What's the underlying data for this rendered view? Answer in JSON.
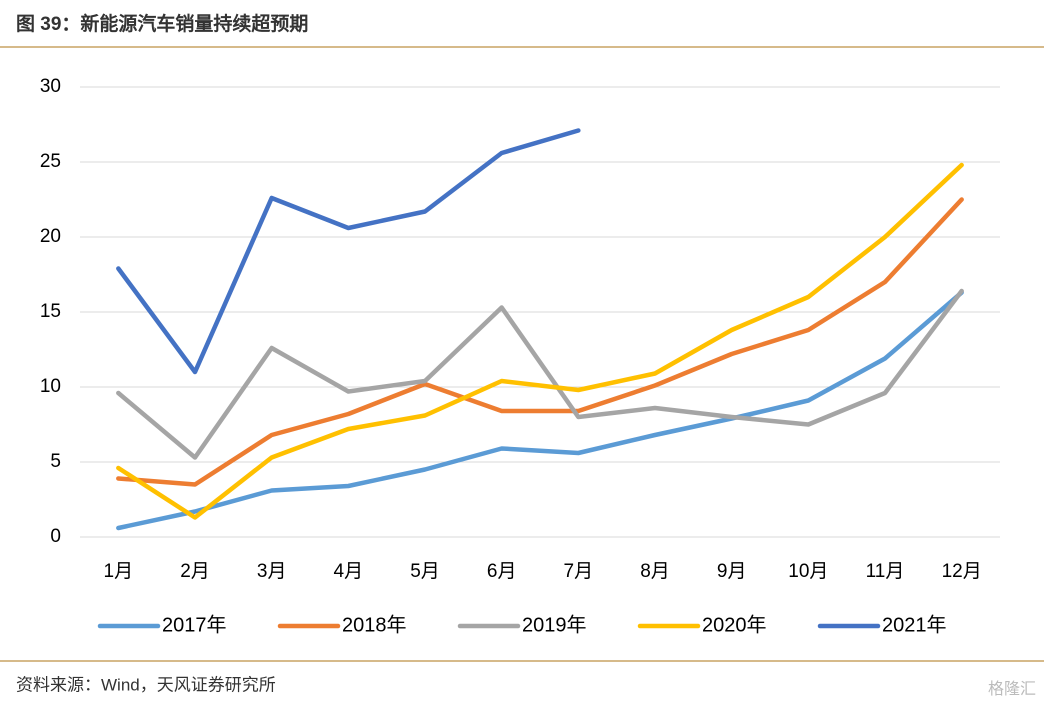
{
  "header": {
    "title": "图 39：新能源汽车销量持续超预期"
  },
  "chart_data": {
    "type": "line",
    "categories": [
      "1月",
      "2月",
      "3月",
      "4月",
      "5月",
      "6月",
      "7月",
      "8月",
      "9月",
      "10月",
      "11月",
      "12月"
    ],
    "series": [
      {
        "name": "2017年",
        "color": "#5b9bd5",
        "values": [
          0.6,
          1.7,
          3.1,
          3.4,
          4.5,
          5.9,
          5.6,
          6.8,
          7.9,
          9.1,
          11.9,
          16.3
        ]
      },
      {
        "name": "2018年",
        "color": "#ed7d31",
        "values": [
          3.9,
          3.5,
          6.8,
          8.2,
          10.2,
          8.4,
          8.4,
          10.1,
          12.2,
          13.8,
          17.0,
          22.5
        ]
      },
      {
        "name": "2019年",
        "color": "#a5a5a5",
        "values": [
          9.6,
          5.3,
          12.6,
          9.7,
          10.4,
          15.3,
          8.0,
          8.6,
          8.0,
          7.5,
          9.6,
          16.4
        ]
      },
      {
        "name": "2020年",
        "color": "#ffc000",
        "values": [
          4.6,
          1.3,
          5.3,
          7.2,
          8.1,
          10.4,
          9.8,
          10.9,
          13.8,
          16.0,
          20.0,
          24.8
        ]
      },
      {
        "name": "2021年",
        "color": "#4472c4",
        "values": [
          17.9,
          11.0,
          22.6,
          20.6,
          21.7,
          25.6,
          27.1,
          null,
          null,
          null,
          null,
          null
        ]
      }
    ],
    "ylim": [
      0,
      30
    ],
    "yticks": [
      0,
      5,
      10,
      15,
      20,
      25,
      30
    ],
    "grid": true,
    "legend": "bottom"
  },
  "footer": {
    "source": "资料来源：Wind，天风证券研究所",
    "watermark": "格隆汇"
  }
}
